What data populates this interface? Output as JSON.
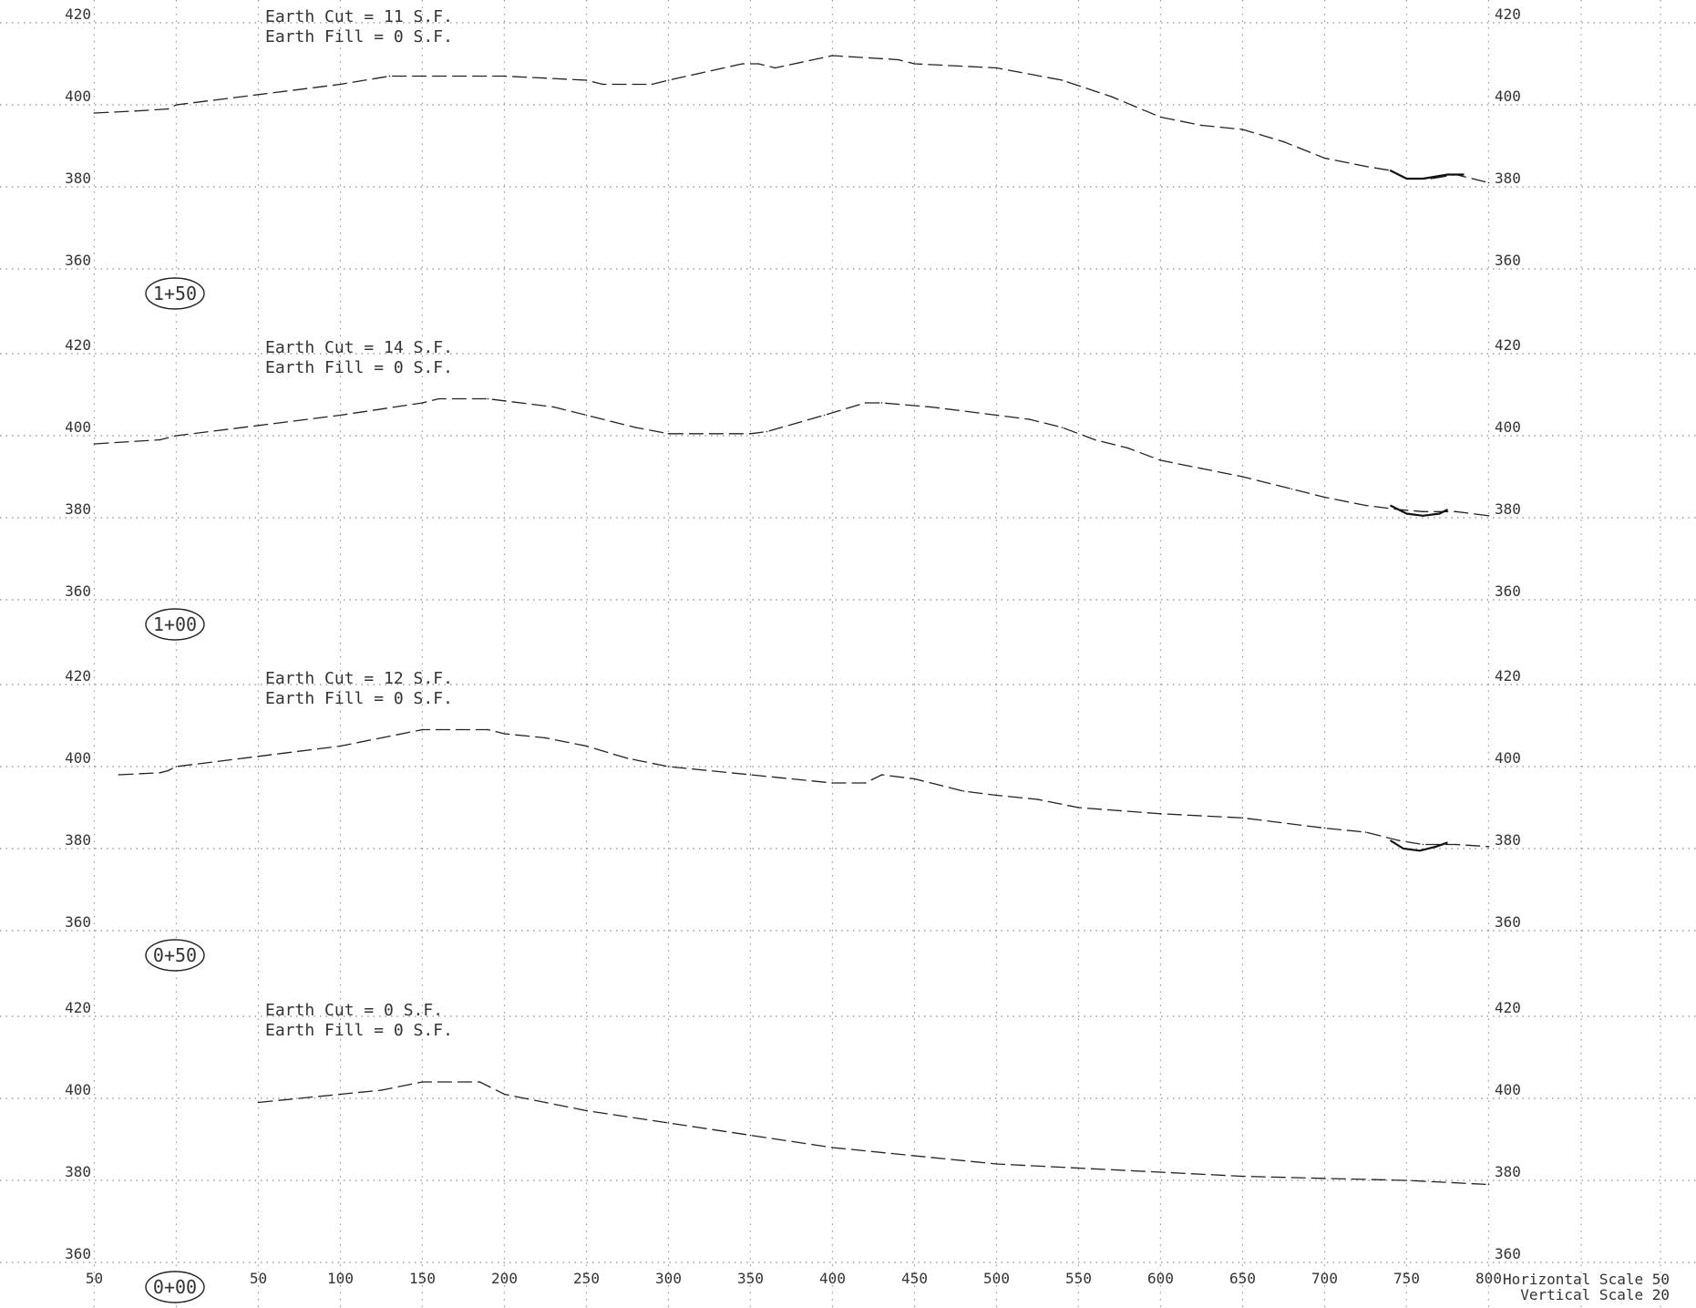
{
  "scale_notes": {
    "horizontal": "Horizontal Scale 50",
    "vertical": "Vertical Scale 20"
  },
  "x_tick_labels": [
    "50",
    "0",
    "50",
    "100",
    "150",
    "200",
    "250",
    "300",
    "350",
    "400",
    "450",
    "500",
    "550",
    "600",
    "650",
    "700",
    "750",
    "800"
  ],
  "colors": {
    "line": "#222222",
    "grid": "#9a9a9a",
    "text": "#333333"
  },
  "chart_data": [
    {
      "type": "line",
      "station": "1+50",
      "annotations": [
        "Earth Cut = 11 S.F.",
        "Earth Fill = 0 S.F."
      ],
      "xlim": [
        -50,
        800
      ],
      "ylim": [
        360,
        420
      ],
      "y_ticks": [
        "420",
        "400",
        "380",
        "360"
      ],
      "grid": true,
      "series": [
        {
          "x": [
            -50,
            -25,
            -5,
            0,
            50,
            100,
            130,
            150,
            200,
            250,
            260,
            290,
            300,
            345,
            355,
            365,
            400,
            440,
            450,
            500,
            540,
            570,
            600,
            625,
            650,
            675,
            700,
            725,
            740,
            750,
            765,
            780,
            800
          ],
          "y": [
            398,
            398.5,
            399,
            400,
            402.5,
            405,
            407,
            407,
            407,
            406,
            405,
            405,
            406,
            410,
            410,
            409,
            412,
            411,
            410,
            409,
            406,
            402,
            397,
            395,
            394,
            391,
            387,
            385,
            384,
            382,
            382,
            383,
            381
          ]
        }
      ],
      "ditch": {
        "x": [
          740,
          750,
          760,
          775,
          785
        ],
        "y": [
          384,
          382,
          382,
          383,
          383
        ]
      }
    },
    {
      "type": "line",
      "station": "1+00",
      "annotations": [
        "Earth Cut = 14 S.F.",
        "Earth Fill = 0 S.F."
      ],
      "xlim": [
        -50,
        800
      ],
      "ylim": [
        360,
        420
      ],
      "y_ticks": [
        "420",
        "400",
        "380",
        "360"
      ],
      "grid": true,
      "series": [
        {
          "x": [
            -50,
            -10,
            0,
            50,
            100,
            150,
            160,
            190,
            200,
            230,
            250,
            280,
            300,
            350,
            360,
            395,
            420,
            430,
            460,
            500,
            520,
            540,
            560,
            580,
            600,
            625,
            650,
            680,
            700,
            725,
            745,
            760,
            780,
            800
          ],
          "y": [
            398,
            399,
            400,
            402.5,
            405,
            408,
            409,
            409,
            408.5,
            407,
            405,
            402,
            400.5,
            400.5,
            401,
            405,
            408,
            408,
            407,
            405,
            404,
            402,
            399,
            397,
            394,
            392,
            390,
            387,
            385,
            383,
            382,
            381.5,
            381.5,
            380.5
          ]
        }
      ],
      "ditch": {
        "x": [
          740,
          750,
          760,
          770,
          775
        ],
        "y": [
          383,
          381,
          380.5,
          381,
          382
        ]
      }
    },
    {
      "type": "line",
      "station": "0+50",
      "annotations": [
        "Earth Cut = 12 S.F.",
        "Earth Fill = 0 S.F."
      ],
      "xlim": [
        -50,
        800
      ],
      "ylim": [
        360,
        420
      ],
      "y_ticks": [
        "420",
        "400",
        "380",
        "360"
      ],
      "grid": true,
      "series": [
        {
          "x": [
            -35,
            -10,
            -5,
            0,
            50,
            100,
            150,
            160,
            190,
            200,
            225,
            250,
            275,
            300,
            350,
            400,
            420,
            430,
            450,
            480,
            500,
            525,
            550,
            600,
            650,
            700,
            725,
            745,
            760,
            780,
            800
          ],
          "y": [
            398,
            398.5,
            399,
            400,
            402.5,
            405,
            409,
            409,
            409,
            408,
            407,
            405,
            402,
            400,
            398,
            396,
            396,
            398,
            397,
            394,
            393,
            392,
            390,
            388.5,
            387.5,
            385,
            384,
            382,
            381,
            381,
            380.5
          ]
        }
      ],
      "ditch": {
        "x": [
          740,
          748,
          758,
          768,
          775
        ],
        "y": [
          382,
          380,
          379.5,
          380.5,
          381.5
        ]
      }
    },
    {
      "type": "line",
      "station": "0+00",
      "annotations": [
        "Earth Cut = 0 S.F.",
        "Earth Fill = 0 S.F."
      ],
      "xlim": [
        -50,
        800
      ],
      "ylim": [
        360,
        420
      ],
      "y_ticks": [
        "420",
        "400",
        "380",
        "360"
      ],
      "grid": true,
      "series": [
        {
          "x": [
            50,
            100,
            125,
            150,
            185,
            200,
            225,
            250,
            300,
            350,
            400,
            450,
            500,
            550,
            600,
            650,
            700,
            750,
            800
          ],
          "y": [
            399,
            401,
            402,
            404,
            404,
            401,
            399,
            397,
            394,
            391,
            388,
            386,
            384,
            383,
            382,
            381,
            380.5,
            380,
            379
          ]
        }
      ]
    }
  ]
}
